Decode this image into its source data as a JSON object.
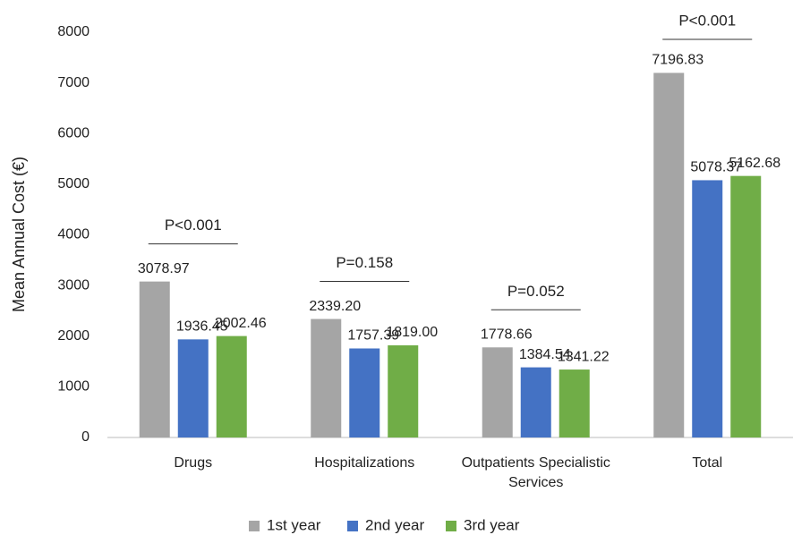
{
  "chart_data": {
    "type": "bar",
    "y_label": "Mean Annual Cost (€)",
    "categories": [
      "Drugs",
      "Hospitalizations",
      "Outpatients Specialistic Services",
      "Total"
    ],
    "series": [
      {
        "name": "1st year",
        "color": "#a5a5a5",
        "values": [
          3078.97,
          2339.2,
          1778.66,
          7196.83
        ],
        "value_labels": [
          "3078.97",
          "2339.20",
          "1778.66",
          "7196.83"
        ]
      },
      {
        "name": "2nd year",
        "color": "#4472c4",
        "values": [
          1936.45,
          1757.39,
          1384.54,
          5078.37
        ],
        "value_labels": [
          "1936.45",
          "1757.39",
          "1384.54",
          "5078.37"
        ]
      },
      {
        "name": "3rd year",
        "color": "#70ad47",
        "values": [
          2002.46,
          1819.0,
          1341.22,
          5162.68
        ],
        "value_labels": [
          "2002.46",
          "1819.00",
          "1341.22",
          "5162.68"
        ]
      }
    ],
    "annotations": [
      "P<0.001",
      "P=0.158",
      "P=0.052",
      "P<0.001"
    ],
    "ylim": [
      0,
      8000
    ],
    "yticks": [
      0,
      1000,
      2000,
      3000,
      4000,
      5000,
      6000,
      7000,
      8000
    ],
    "grid": false,
    "legend": "bottom"
  }
}
